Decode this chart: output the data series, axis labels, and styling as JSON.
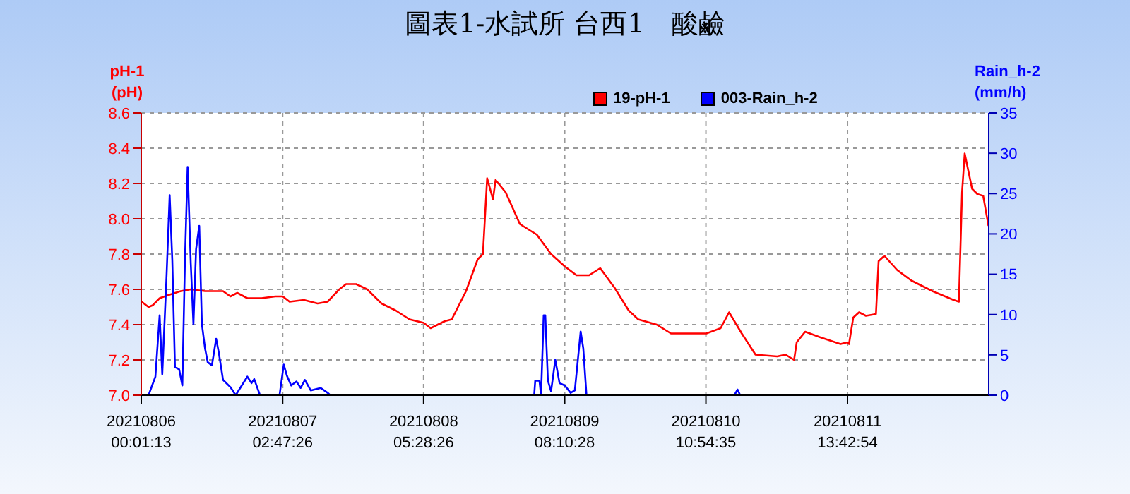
{
  "chart_data": {
    "type": "line",
    "title": "圖表1-水試所 台西1　酸鹼",
    "ylabel": "pH-1 (pH)",
    "y2label": "Rain_h-2 (mm/h)",
    "xlim": [
      "2021-08-06T00:01:13",
      "2021-08-12T16:27"
    ],
    "xticks": [
      {
        "value": "2021-08-06T00:01:13",
        "label": "20210806 00:01:13"
      },
      {
        "value": "2021-08-07T02:47:26",
        "label": "20210807 02:47:26"
      },
      {
        "value": "2021-08-08T05:28:26",
        "label": "20210808 05:28:26"
      },
      {
        "value": "2021-08-09T08:10:28",
        "label": "20210809 08:10:28"
      },
      {
        "value": "2021-08-10T10:54:35",
        "label": "20210810 10:54:35"
      },
      {
        "value": "2021-08-11T13:42:54",
        "label": "20210811 13:42:54"
      }
    ],
    "ylim": [
      7.0,
      8.6
    ],
    "yticks": [
      {
        "value": 7,
        "label": "7.0"
      },
      7.2,
      7.4,
      7.6,
      7.8,
      {
        "value": 8,
        "label": "8.0"
      },
      8.2,
      8.4,
      8.6
    ],
    "y2lim": [
      0,
      35
    ],
    "y2ticks": [
      0,
      5,
      10,
      15,
      20,
      25,
      30,
      35
    ],
    "grid": true,
    "legend": "top",
    "series": [
      {
        "name": "19-pH-1",
        "color": "#ff0000",
        "x": [
          "2021-08-06T00:06",
          "2021-08-06T01:24",
          "2021-08-06T02:12",
          "2021-08-06T03:30",
          "2021-08-06T05:24",
          "2021-08-06T07:30",
          "2021-08-06T09:24",
          "2021-08-06T12:06",
          "2021-08-06T15:30",
          "2021-08-06T16:54",
          "2021-08-06T18:12",
          "2021-08-06T20:06",
          "2021-08-06T22:48",
          "2021-08-07T01:24",
          "2021-08-07T02:48",
          "2021-08-07T04:06",
          "2021-08-07T06:48",
          "2021-08-07T09:24",
          "2021-08-07T11:18",
          "2021-08-07T13:30",
          "2021-08-07T14:48",
          "2021-08-07T16:42",
          "2021-08-07T18:48",
          "2021-08-07T21:30",
          "2021-08-08T00:12",
          "2021-08-08T02:48",
          "2021-08-08T05:30",
          "2021-08-08T06:48",
          "2021-08-08T09:30",
          "2021-08-08T10:48",
          "2021-08-08T13:30",
          "2021-08-08T15:42",
          "2021-08-08T16:42",
          "2021-08-08T17:30",
          "2021-08-08T18:36",
          "2021-08-08T19:06",
          "2021-08-08T21:00",
          "2021-08-08T23:42",
          "2021-08-09T02:54",
          "2021-08-09T05:36",
          "2021-08-09T08:12",
          "2021-08-09T10:24",
          "2021-08-09T12:48",
          "2021-08-09T14:54",
          "2021-08-09T17:36",
          "2021-08-09T20:18",
          "2021-08-09T22:06",
          "2021-08-10T01:36",
          "2021-08-10T04:18",
          "2021-08-10T08:18",
          "2021-08-10T11:00",
          "2021-08-10T13:42",
          "2021-08-10T15:18",
          "2021-08-10T17:42",
          "2021-08-10T20:18",
          "2021-08-11T00:24",
          "2021-08-11T02:00",
          "2021-08-11T03:36",
          "2021-08-11T04:06",
          "2021-08-11T05:42",
          "2021-08-11T08:24",
          "2021-08-11T12:24",
          "2021-08-11T13:42",
          "2021-08-11T14:00",
          "2021-08-11T14:48",
          "2021-08-11T15:54",
          "2021-08-11T17:12",
          "2021-08-11T19:06",
          "2021-08-11T19:36",
          "2021-08-11T20:42",
          "2021-08-11T23:06",
          "2021-08-12T01:48",
          "2021-08-12T05:48",
          "2021-08-12T09:48",
          "2021-08-12T10:48",
          "2021-08-12T11:24",
          "2021-08-12T11:54",
          "2021-08-12T13:18",
          "2021-08-12T14:18",
          "2021-08-12T15:24",
          "2021-08-12T16:24"
        ],
        "values": [
          7.53,
          7.5,
          7.51,
          7.55,
          7.57,
          7.59,
          7.6,
          7.59,
          7.59,
          7.56,
          7.58,
          7.55,
          7.55,
          7.56,
          7.56,
          7.53,
          7.54,
          7.52,
          7.53,
          7.6,
          7.63,
          7.63,
          7.6,
          7.52,
          7.48,
          7.43,
          7.41,
          7.38,
          7.42,
          7.43,
          7.59,
          7.77,
          7.8,
          8.23,
          8.11,
          8.22,
          8.15,
          7.97,
          7.91,
          7.8,
          7.73,
          7.68,
          7.68,
          7.72,
          7.61,
          7.48,
          7.43,
          7.4,
          7.35,
          7.35,
          7.35,
          7.38,
          7.47,
          7.35,
          7.23,
          7.22,
          7.23,
          7.2,
          7.3,
          7.36,
          7.33,
          7.29,
          7.3,
          7.29,
          7.44,
          7.47,
          7.45,
          7.46,
          7.76,
          7.79,
          7.71,
          7.65,
          7.59,
          7.54,
          7.53,
          8.15,
          8.37,
          8.17,
          8.14,
          8.13,
          7.96
        ]
      },
      {
        "name": "003-Rain_h-2",
        "color": "#0000ff",
        "axis": "y2",
        "x": [
          "2021-08-06T00:06",
          "2021-08-06T01:24",
          "2021-08-06T02:42",
          "2021-08-06T03:30",
          "2021-08-06T04:00",
          "2021-08-06T04:48",
          "2021-08-06T05:24",
          "2021-08-06T05:54",
          "2021-08-06T06:24",
          "2021-08-06T07:12",
          "2021-08-06T07:48",
          "2021-08-06T08:18",
          "2021-08-06T08:48",
          "2021-08-06T09:24",
          "2021-08-06T09:54",
          "2021-08-06T10:24",
          "2021-08-06T11:00",
          "2021-08-06T11:30",
          "2021-08-06T12:06",
          "2021-08-06T12:36",
          "2021-08-06T13:24",
          "2021-08-06T14:12",
          "2021-08-06T14:42",
          "2021-08-06T15:30",
          "2021-08-06T16:54",
          "2021-08-06T17:54",
          "2021-08-06T20:06",
          "2021-08-06T20:54",
          "2021-08-06T21:24",
          "2021-08-06T22:30",
          "2021-08-07T02:12",
          "2021-08-07T03:00",
          "2021-08-07T03:36",
          "2021-08-07T04:24",
          "2021-08-07T05:24",
          "2021-08-07T06:12",
          "2021-08-07T07:00",
          "2021-08-07T08:06",
          "2021-08-07T10:00",
          "2021-08-07T11:18",
          "2021-08-07T11:48",
          "2021-08-09T02:24",
          "2021-08-09T02:36",
          "2021-08-09T03:24",
          "2021-08-09T03:42",
          "2021-08-09T04:12",
          "2021-08-09T04:30",
          "2021-08-09T05:00",
          "2021-08-09T05:36",
          "2021-08-09T06:24",
          "2021-08-09T07:12",
          "2021-08-09T08:12",
          "2021-08-09T09:18",
          "2021-08-09T10:06",
          "2021-08-09T11:12",
          "2021-08-09T11:42",
          "2021-08-09T12:18",
          "2021-08-10T16:18",
          "2021-08-10T16:54",
          "2021-08-10T17:24",
          "2021-08-12T16:24"
        ],
        "values": [
          0,
          0,
          2.3,
          9.9,
          2.6,
          14.6,
          24.8,
          16.7,
          3.5,
          3.2,
          1.2,
          16.9,
          28.3,
          16.3,
          8.8,
          18.1,
          21,
          8.8,
          5.8,
          4.1,
          3.7,
          7.0,
          5.3,
          1.9,
          1.0,
          0,
          2.3,
          1.5,
          2.0,
          0,
          0,
          3.8,
          2.4,
          1.2,
          1.7,
          0.9,
          1.9,
          0.6,
          0.9,
          0.3,
          0,
          0,
          1.8,
          1.8,
          0,
          9.9,
          9.9,
          1.8,
          0.5,
          4.4,
          1.5,
          1.2,
          0.3,
          0.6,
          7.9,
          5.8,
          0,
          0,
          0.7,
          0,
          0
        ]
      }
    ]
  }
}
